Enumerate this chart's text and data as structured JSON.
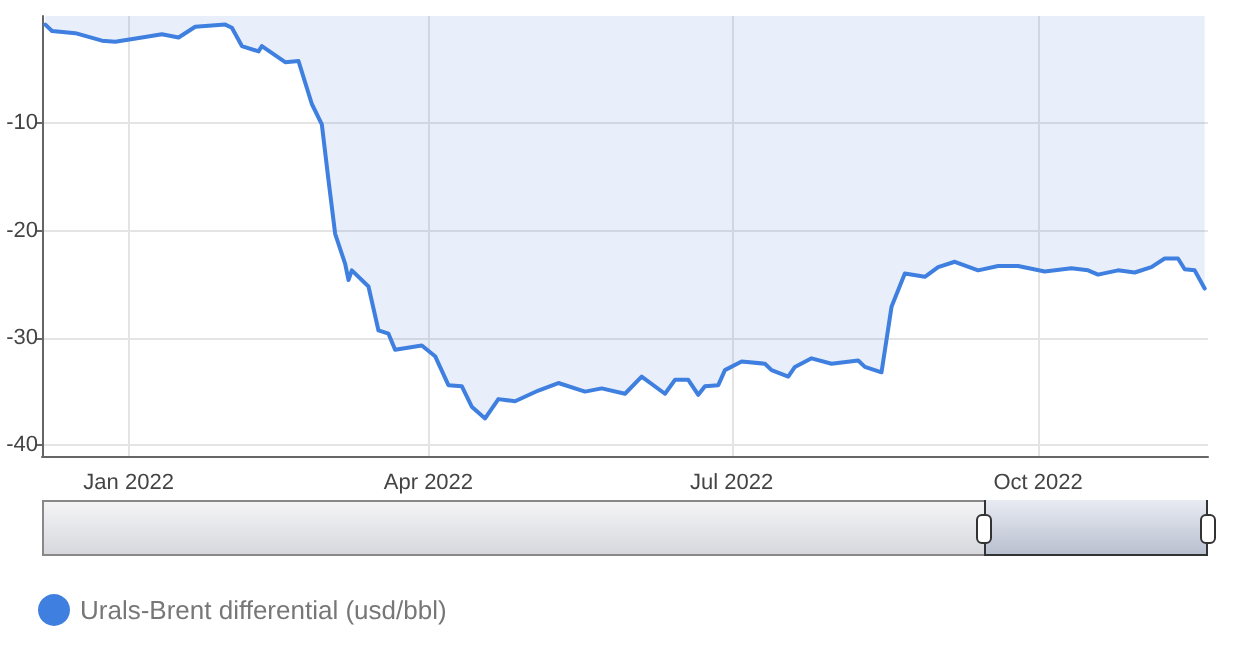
{
  "chart_data": {
    "type": "area",
    "x": [
      "2021-12-07",
      "2021-12-09",
      "2021-12-16",
      "2021-12-24",
      "2021-12-28",
      "2022-01-05",
      "2022-01-11",
      "2022-01-16",
      "2022-01-21",
      "2022-01-30",
      "2022-02-01",
      "2022-02-04",
      "2022-02-09",
      "2022-02-10",
      "2022-02-17",
      "2022-02-21",
      "2022-02-25",
      "2022-02-28",
      "2022-03-02",
      "2022-03-04",
      "2022-03-07",
      "2022-03-08",
      "2022-03-09",
      "2022-03-14",
      "2022-03-17",
      "2022-03-20",
      "2022-03-22",
      "2022-03-30",
      "2022-04-03",
      "2022-04-07",
      "2022-04-11",
      "2022-04-14",
      "2022-04-18",
      "2022-04-22",
      "2022-04-27",
      "2022-05-04",
      "2022-05-10",
      "2022-05-18",
      "2022-05-23",
      "2022-05-30",
      "2022-06-04",
      "2022-06-11",
      "2022-06-14",
      "2022-06-18",
      "2022-06-21",
      "2022-06-23",
      "2022-06-27",
      "2022-06-29",
      "2022-07-04",
      "2022-07-11",
      "2022-07-13",
      "2022-07-18",
      "2022-07-20",
      "2022-07-25",
      "2022-07-31",
      "2022-08-08",
      "2022-08-10",
      "2022-08-15",
      "2022-08-18",
      "2022-08-22",
      "2022-08-28",
      "2022-09-01",
      "2022-09-06",
      "2022-09-13",
      "2022-09-19",
      "2022-09-25",
      "2022-10-03",
      "2022-10-11",
      "2022-10-16",
      "2022-10-19",
      "2022-10-25",
      "2022-10-30",
      "2022-11-04",
      "2022-11-08",
      "2022-11-12",
      "2022-11-14",
      "2022-11-17",
      "2022-11-20"
    ],
    "series": [
      {
        "name": "Urals-Brent differential (usd/bbl)",
        "color": "#3f7fdf",
        "values": [
          -0.8,
          -1.4,
          -1.6,
          -2.3,
          -2.4,
          -2.0,
          -1.7,
          -2.0,
          -1.0,
          -0.8,
          -1.1,
          -2.8,
          -3.3,
          -2.8,
          -4.3,
          -4.2,
          -8.2,
          -10.1,
          -15.3,
          -20.3,
          -23.1,
          -24.6,
          -23.7,
          -25.2,
          -29.3,
          -29.6,
          -31.1,
          -30.7,
          -31.7,
          -34.4,
          -34.5,
          -36.4,
          -37.5,
          -35.7,
          -35.9,
          -34.9,
          -34.2,
          -35.0,
          -34.7,
          -35.2,
          -33.6,
          -35.2,
          -33.9,
          -33.9,
          -35.3,
          -34.5,
          -34.4,
          -33.0,
          -32.2,
          -32.4,
          -33.0,
          -33.6,
          -32.7,
          -31.9,
          -32.4,
          -32.1,
          -32.7,
          -33.2,
          -27.1,
          -24.0,
          -24.3,
          -23.4,
          -22.9,
          -23.7,
          -23.3,
          -23.3,
          -23.8,
          -23.5,
          -23.7,
          -24.1,
          -23.7,
          -23.9,
          -23.4,
          -22.6,
          -22.6,
          -23.6,
          -23.7,
          -25.4
        ]
      }
    ],
    "xlim": [
      "2021-12-06",
      "2022-11-21"
    ],
    "xticks": [
      {
        "value": "2022-01-01",
        "label": "Jan 2022"
      },
      {
        "value": "2022-04-01",
        "label": "Apr 2022"
      },
      {
        "value": "2022-07-01",
        "label": "Jul 2022"
      },
      {
        "value": "2022-10-01",
        "label": "Oct 2022"
      }
    ],
    "ylim": [
      -41,
      0
    ],
    "yticks": [
      -40,
      -30,
      -20,
      -10
    ],
    "grid": true,
    "legend": "bottom left",
    "marker": "none",
    "line_style": "solid"
  }
}
